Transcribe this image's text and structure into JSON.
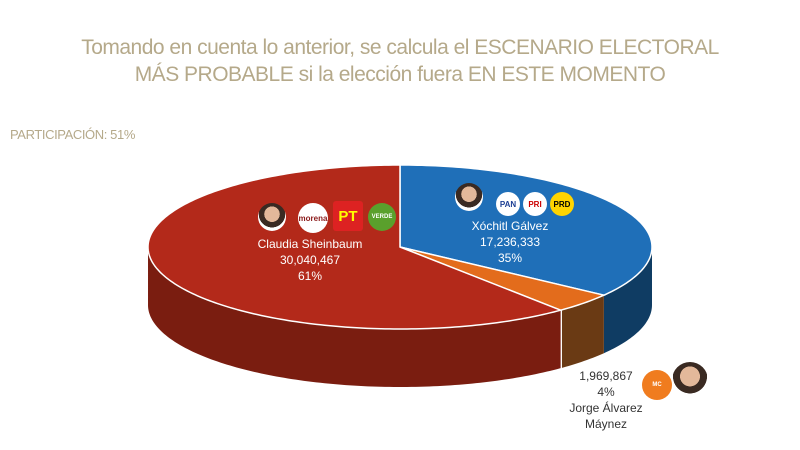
{
  "title_line1": "Tomando en cuenta lo anterior, se calcula el ESCENARIO ELECTORAL",
  "title_line2": "MÁS PROBABLE si la elección fuera EN ESTE MOMENTO",
  "participation": "PARTICIPACIÓN: 51%",
  "chart_data": {
    "type": "pie",
    "style": "3d",
    "slices": [
      {
        "name": "Xóchitl Gálvez",
        "votes": "17,236,333",
        "value": 35,
        "label": "35%",
        "color": "#1f6fb8",
        "parties": [
          "PAN",
          "PRI",
          "PRD"
        ]
      },
      {
        "name": "Jorge Álvarez Máynez",
        "name_line1": "Jorge Álvarez",
        "name_line2": "Máynez",
        "votes": "1,969,867",
        "value": 4,
        "label": "4%",
        "color": "#e36c1c",
        "parties": [
          "MC"
        ]
      },
      {
        "name": "Claudia Sheinbaum",
        "votes": "30,040,467",
        "value": 61,
        "label": "61%",
        "color": "#b3291a",
        "parties": [
          "morena",
          "PT",
          "VERDE"
        ]
      }
    ]
  }
}
